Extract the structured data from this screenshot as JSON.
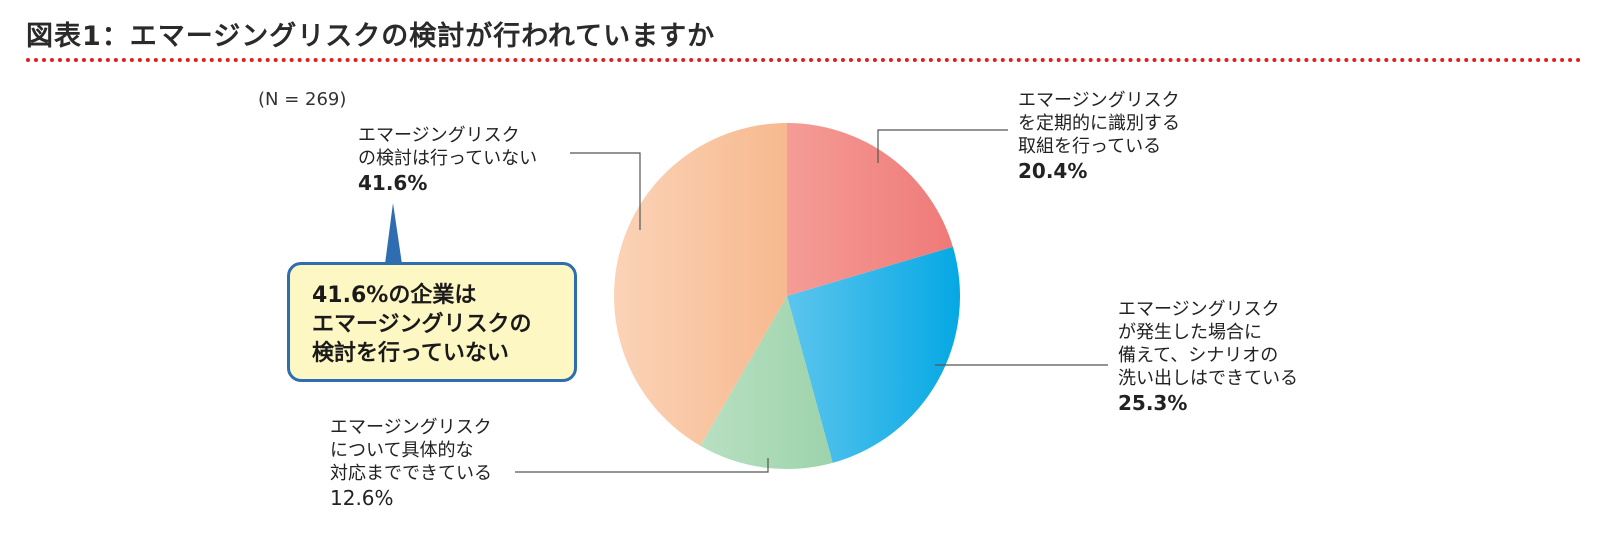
{
  "title": "図表1：エマージングリスクの検討が行われていますか",
  "chart_data": {
    "type": "pie",
    "n_label": "(N = 269)",
    "slices": [
      {
        "label_lines": [
          "エマージングリスク",
          "を定期的に識別する",
          "取組を行っている"
        ],
        "value": 20.4,
        "display": "20.4%",
        "color": "#f28585"
      },
      {
        "label_lines": [
          "エマージングリスク",
          "が発生した場合に",
          "備えて、シナリオの",
          "洗い出しはできている"
        ],
        "value": 25.3,
        "display": "25.3%",
        "color": "#11aee6"
      },
      {
        "label_lines": [
          "エマージングリスク",
          "について具体的な",
          "対応までできている"
        ],
        "value": 12.6,
        "display": "12.6%",
        "color": "#a7d8b3"
      },
      {
        "label_lines": [
          "エマージングリスク",
          "の検討は行っていない"
        ],
        "value": 41.6,
        "display": "41.6%",
        "color": "#f8bd95"
      }
    ],
    "start_angle_deg": 0,
    "direction": "clockwise"
  },
  "callout": {
    "lines": [
      "41.6%の企業は",
      "エマージングリスクの",
      "検討を行っていない"
    ],
    "fill": "#fdf7c3",
    "border": "#2e6db0"
  }
}
